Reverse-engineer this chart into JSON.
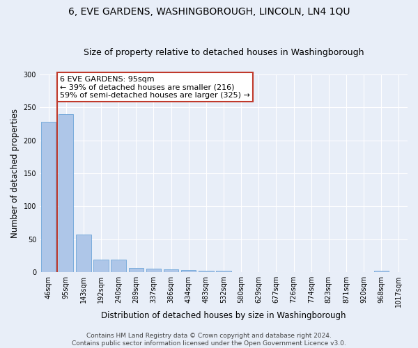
{
  "title": "6, EVE GARDENS, WASHINGBOROUGH, LINCOLN, LN4 1QU",
  "subtitle": "Size of property relative to detached houses in Washingborough",
  "xlabel": "Distribution of detached houses by size in Washingborough",
  "ylabel": "Number of detached properties",
  "categories": [
    "46sqm",
    "95sqm",
    "143sqm",
    "192sqm",
    "240sqm",
    "289sqm",
    "337sqm",
    "386sqm",
    "434sqm",
    "483sqm",
    "532sqm",
    "580sqm",
    "629sqm",
    "677sqm",
    "726sqm",
    "774sqm",
    "823sqm",
    "871sqm",
    "920sqm",
    "968sqm",
    "1017sqm"
  ],
  "values": [
    228,
    240,
    57,
    19,
    19,
    7,
    6,
    4,
    3,
    2,
    2,
    0,
    0,
    0,
    0,
    0,
    0,
    0,
    0,
    2,
    0
  ],
  "bar_color": "#aec6e8",
  "bar_edge_color": "#5b9bd5",
  "vline_x": 0.5,
  "vline_color": "#c0392b",
  "annotation_box_text": "6 EVE GARDENS: 95sqm\n← 39% of detached houses are smaller (216)\n59% of semi-detached houses are larger (325) →",
  "annotation_box_color": "#ffffff",
  "annotation_box_edge_color": "#c0392b",
  "ylim": [
    0,
    300
  ],
  "yticks": [
    0,
    50,
    100,
    150,
    200,
    250,
    300
  ],
  "background_color": "#e8eef8",
  "grid_color": "#ffffff",
  "footer_line1": "Contains HM Land Registry data © Crown copyright and database right 2024.",
  "footer_line2": "Contains public sector information licensed under the Open Government Licence v3.0.",
  "title_fontsize": 10,
  "subtitle_fontsize": 9,
  "axis_label_fontsize": 8.5,
  "tick_fontsize": 7,
  "annotation_fontsize": 8,
  "footer_fontsize": 6.5
}
